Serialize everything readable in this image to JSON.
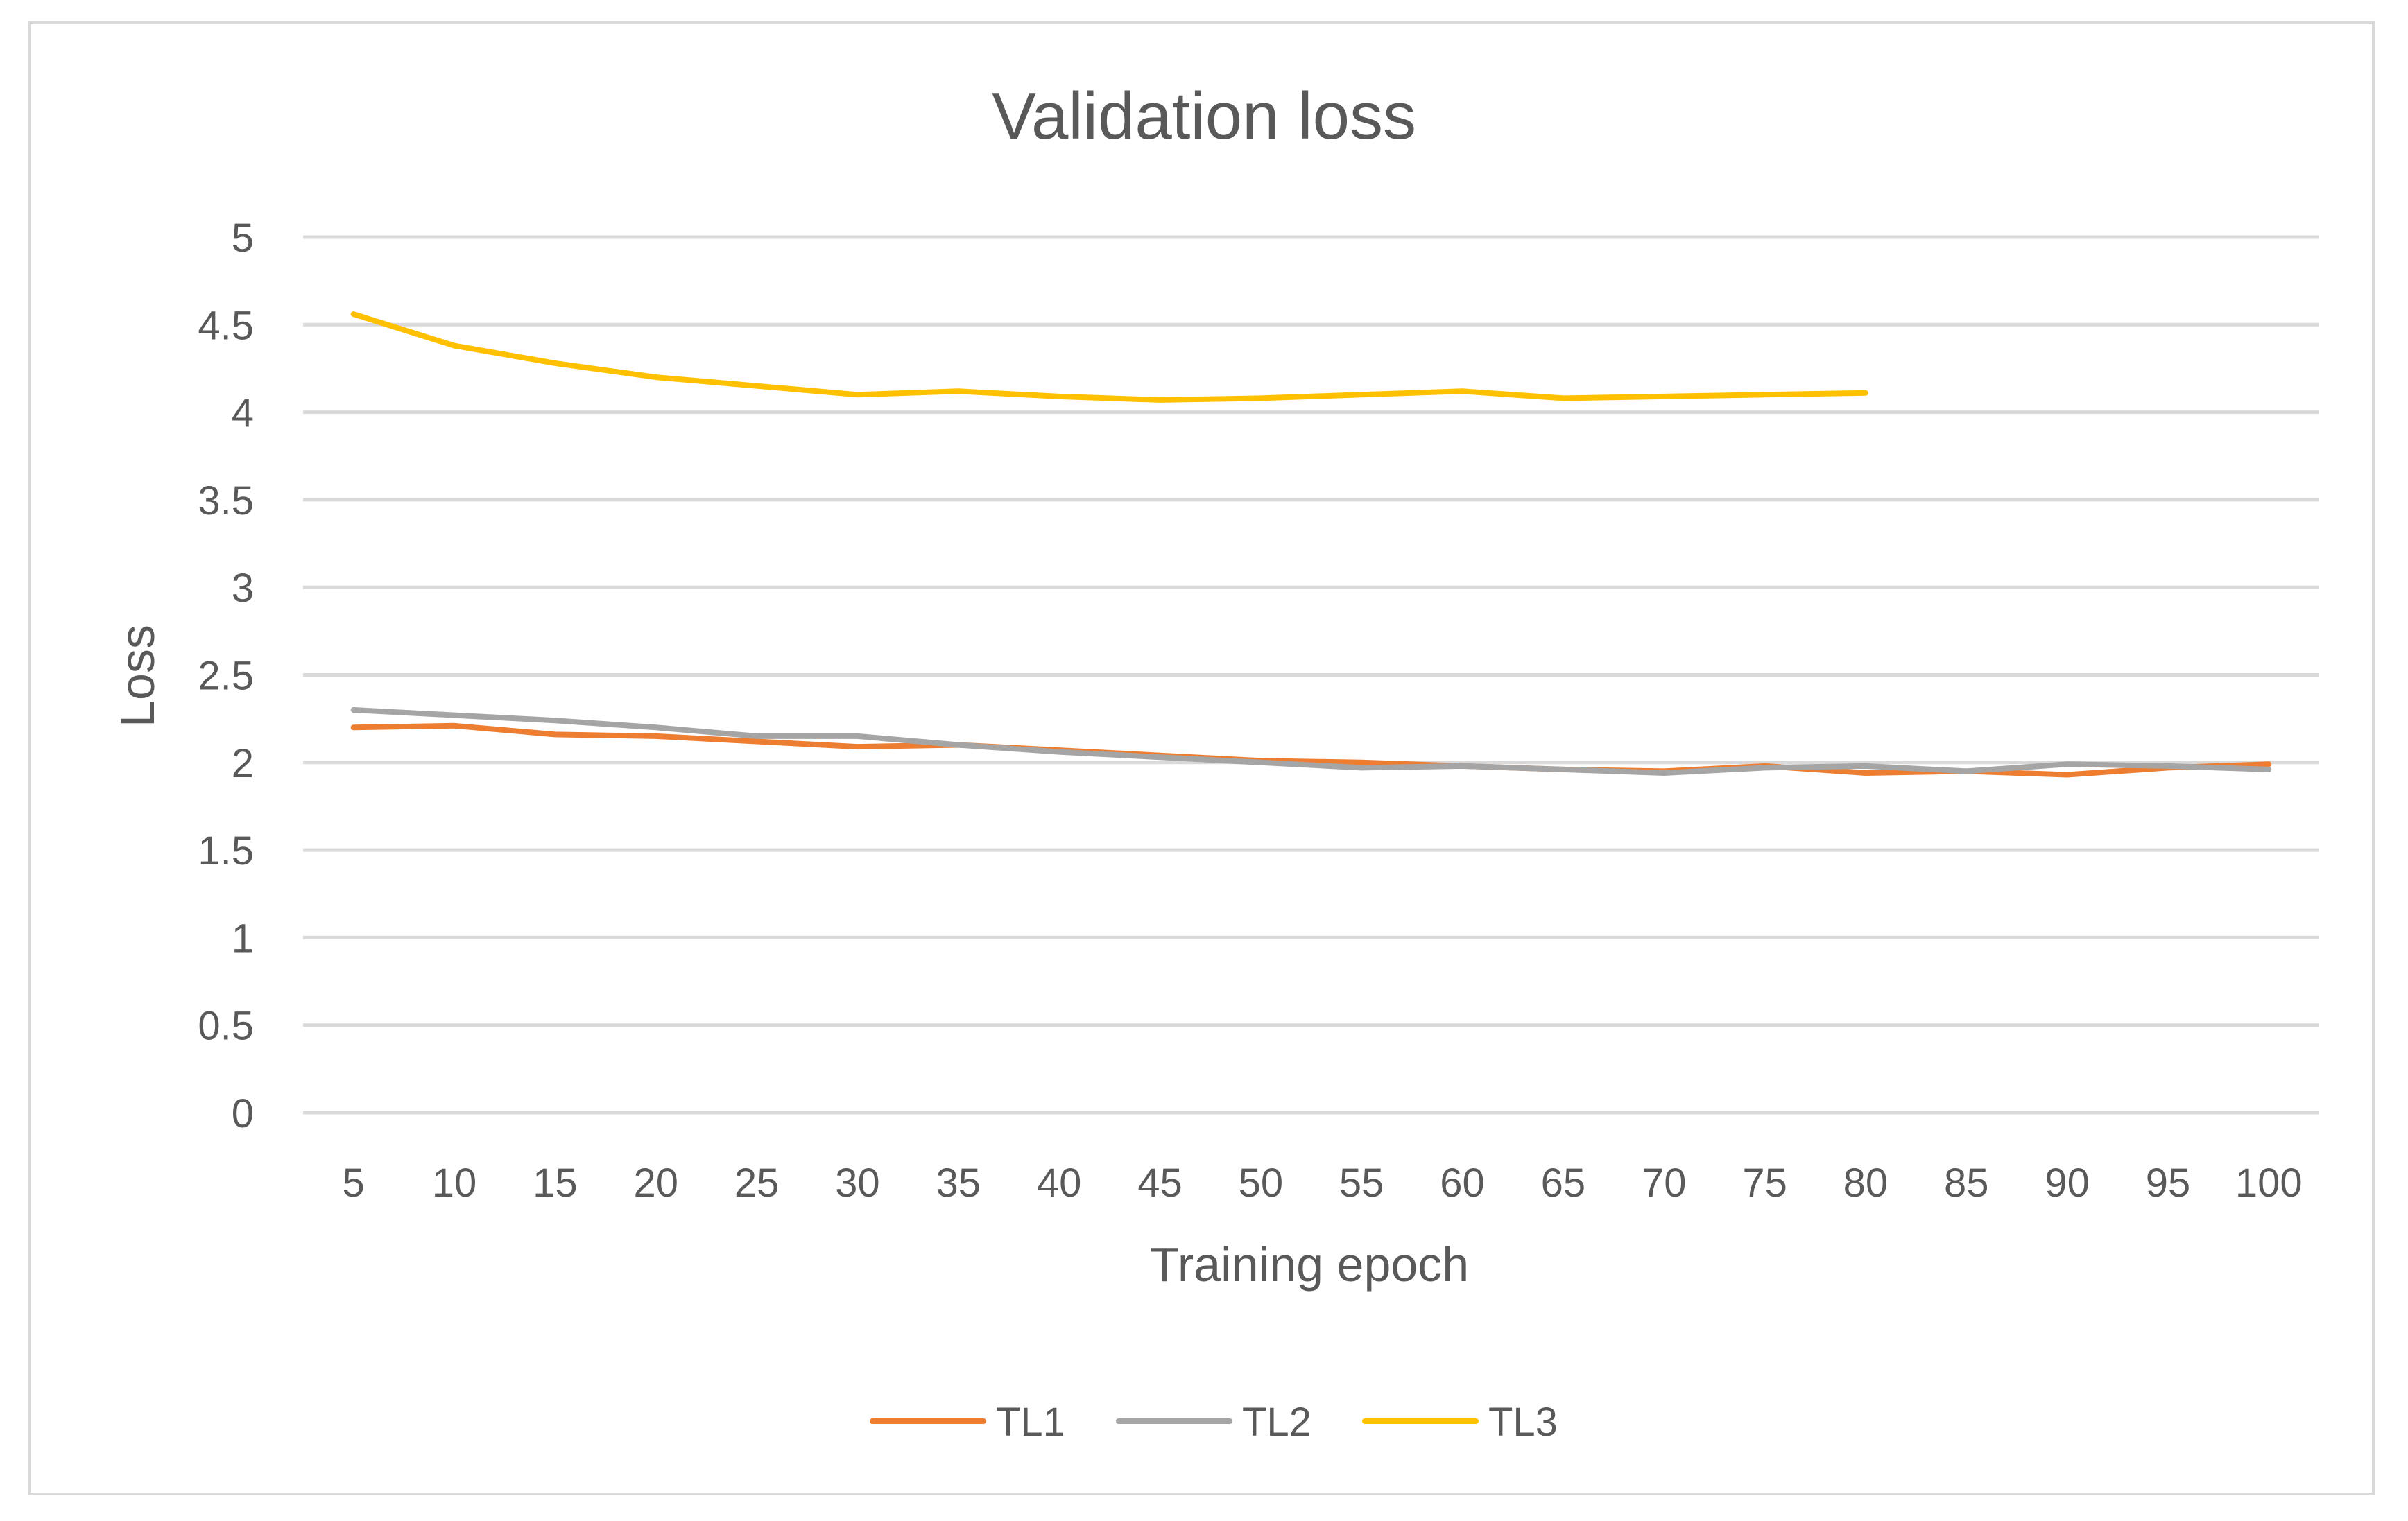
{
  "chart_data": {
    "type": "line",
    "title": "Validation loss",
    "xlabel": "Training epoch",
    "ylabel": "Loss",
    "ylim": [
      0,
      5
    ],
    "yticks": [
      "0",
      "0.5",
      "1",
      "1.5",
      "2",
      "2.5",
      "3",
      "3.5",
      "4",
      "4.5",
      "5"
    ],
    "categories": [
      "5",
      "10",
      "15",
      "20",
      "25",
      "30",
      "35",
      "40",
      "45",
      "50",
      "55",
      "60",
      "65",
      "70",
      "75",
      "80",
      "85",
      "90",
      "95",
      "100"
    ],
    "grid": true,
    "legend_position": "bottom",
    "series": [
      {
        "name": "TL1",
        "color": "#ED7D31",
        "values": [
          2.2,
          2.21,
          2.16,
          2.15,
          2.12,
          2.09,
          2.1,
          2.07,
          2.04,
          2.01,
          2.0,
          1.98,
          1.96,
          1.95,
          1.98,
          1.94,
          1.95,
          1.93,
          1.97,
          1.99
        ]
      },
      {
        "name": "TL2",
        "color": "#A5A5A5",
        "values": [
          2.3,
          2.27,
          2.24,
          2.2,
          2.15,
          2.15,
          2.1,
          2.06,
          2.03,
          2.0,
          1.97,
          1.98,
          1.96,
          1.94,
          1.97,
          1.98,
          1.95,
          1.99,
          1.98,
          1.96
        ]
      },
      {
        "name": "TL3",
        "color": "#FFC000",
        "values": [
          4.56,
          4.38,
          4.28,
          4.2,
          4.15,
          4.1,
          4.12,
          4.09,
          4.07,
          4.08,
          4.1,
          4.12,
          4.08,
          4.09,
          4.1,
          4.11,
          null,
          null,
          null,
          null
        ]
      }
    ]
  }
}
